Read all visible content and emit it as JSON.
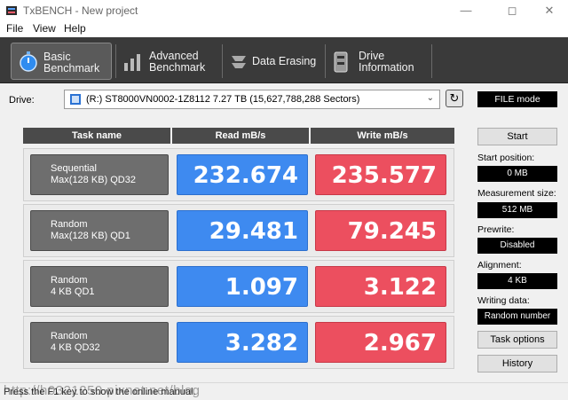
{
  "window": {
    "title": "TxBENCH - New project"
  },
  "menu": [
    "File",
    "View",
    "Help"
  ],
  "tabs": [
    {
      "label": "Basic\nBenchmark",
      "icon": "stopwatch-icon",
      "active": true
    },
    {
      "label": "Advanced\nBenchmark",
      "icon": "bar-chart-icon",
      "active": false
    },
    {
      "label": "Data Erasing",
      "icon": "eraser-icon",
      "active": false
    },
    {
      "label": "Drive\nInformation",
      "icon": "drive-info-icon",
      "active": false
    }
  ],
  "drive": {
    "label": "Drive:",
    "selected": "(R:) ST8000VN0002-1Z8112  7.27 TB (15,627,788,288 Sectors)"
  },
  "mode": "FILE mode",
  "start_label": "Start",
  "params": {
    "start_position": {
      "label": "Start position:",
      "value": "0 MB"
    },
    "measurement_size": {
      "label": "Measurement size:",
      "value": "512 MB"
    },
    "prewrite": {
      "label": "Prewrite:",
      "value": "Disabled"
    },
    "alignment": {
      "label": "Alignment:",
      "value": "4 KB"
    },
    "writing_data": {
      "label": "Writing data:",
      "value": "Random number"
    }
  },
  "buttons": {
    "task_options": "Task options",
    "history": "History"
  },
  "table": {
    "headers": [
      "Task name",
      "Read mB/s",
      "Write mB/s"
    ],
    "rows": [
      {
        "line1": "Sequential",
        "line2": "Max(128 KB) QD32",
        "read": "232.674",
        "write": "235.577"
      },
      {
        "line1": "Random",
        "line2": "Max(128 KB) QD1",
        "read": "29.481",
        "write": "79.245"
      },
      {
        "line1": "Random",
        "line2": "4 KB QD1",
        "read": "1.097",
        "write": "3.122"
      },
      {
        "line1": "Random",
        "line2": "4 KB QD32",
        "read": "3.282",
        "write": "2.967"
      }
    ]
  },
  "status": "Press the F1 key to show the online manual.",
  "watermark": "http://h0321250.pixnet.net/blog",
  "colors": {
    "read": "#3e8af0",
    "write": "#ec4f5f",
    "toolbar": "#3a3a3a"
  }
}
